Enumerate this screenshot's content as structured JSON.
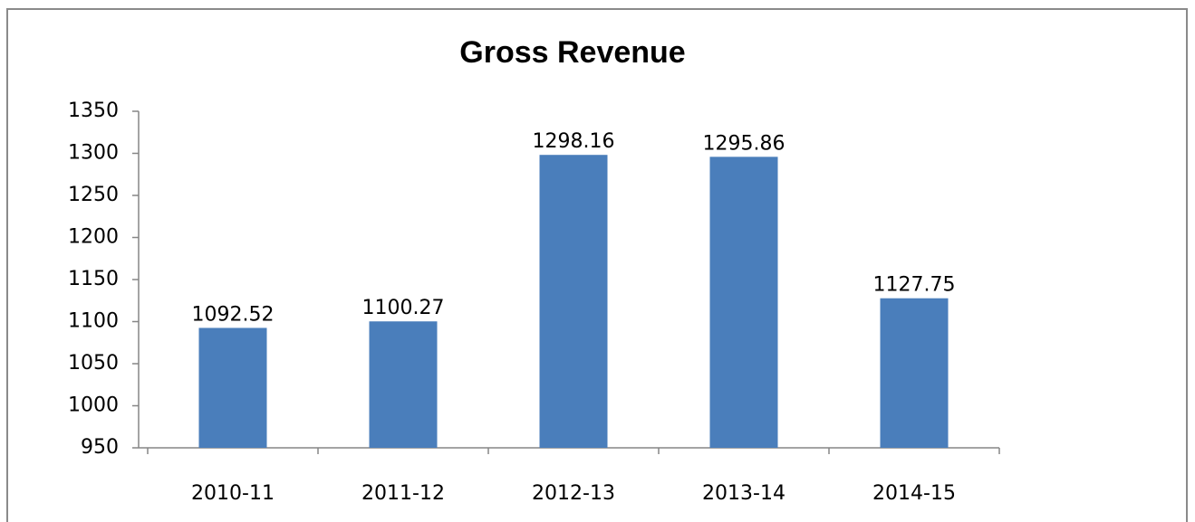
{
  "chart_data": {
    "type": "bar",
    "title": "Gross Revenue",
    "categories": [
      "2010-11",
      "2011-12",
      "2012-13",
      "2013-14",
      "2014-15"
    ],
    "values": [
      1092.52,
      1100.27,
      1298.16,
      1295.86,
      1127.75
    ],
    "color": "#4a7ebb",
    "ylim": [
      950,
      1350
    ],
    "yticks": [
      950,
      1000,
      1050,
      1100,
      1150,
      1200,
      1250,
      1300,
      1350
    ],
    "grid": false
  }
}
